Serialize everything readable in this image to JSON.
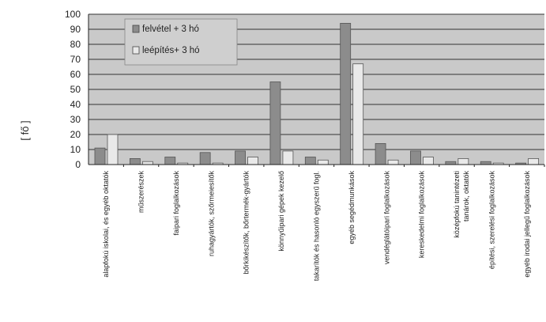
{
  "chart_data": {
    "type": "bar",
    "title": "",
    "xlabel": "",
    "ylabel": "[ fő ]",
    "ylim": [
      0,
      100
    ],
    "yticks": [
      0,
      10,
      20,
      30,
      40,
      50,
      60,
      70,
      80,
      90,
      100
    ],
    "grid": true,
    "legend_position": "top-left",
    "categories": [
      "alapfokú iskolai, és egyéb oktatók",
      "műszerészek",
      "faipari foglalkozások",
      "ruhagyártók, szőrmeiesítők",
      "bőrkikészítők, bőrtermék-gyártók",
      "könnyűipari gépek kezelő",
      "takarítók és hasonló egyszerű fogl.",
      "egyéb segédmunkások",
      "vendéglátóipari foglalkozások",
      "kereskedelmi foglalkozások",
      "középfokú tanintézeti tanárok, oktatók",
      "építési, szerelési foglalkozások",
      "egyéb irodai jellegű foglalkozások"
    ],
    "series": [
      {
        "name": "felvétel + 3 hó",
        "color": "#8c8c8c",
        "values": [
          11,
          4,
          5,
          8,
          9,
          55,
          5,
          94,
          14,
          9,
          2,
          2,
          1
        ]
      },
      {
        "name": "leépítés+ 3 hó",
        "color": "#e9e9e9",
        "values": [
          20,
          2,
          1,
          1,
          5,
          9,
          3,
          67,
          3,
          5,
          4,
          1,
          4
        ]
      }
    ]
  }
}
